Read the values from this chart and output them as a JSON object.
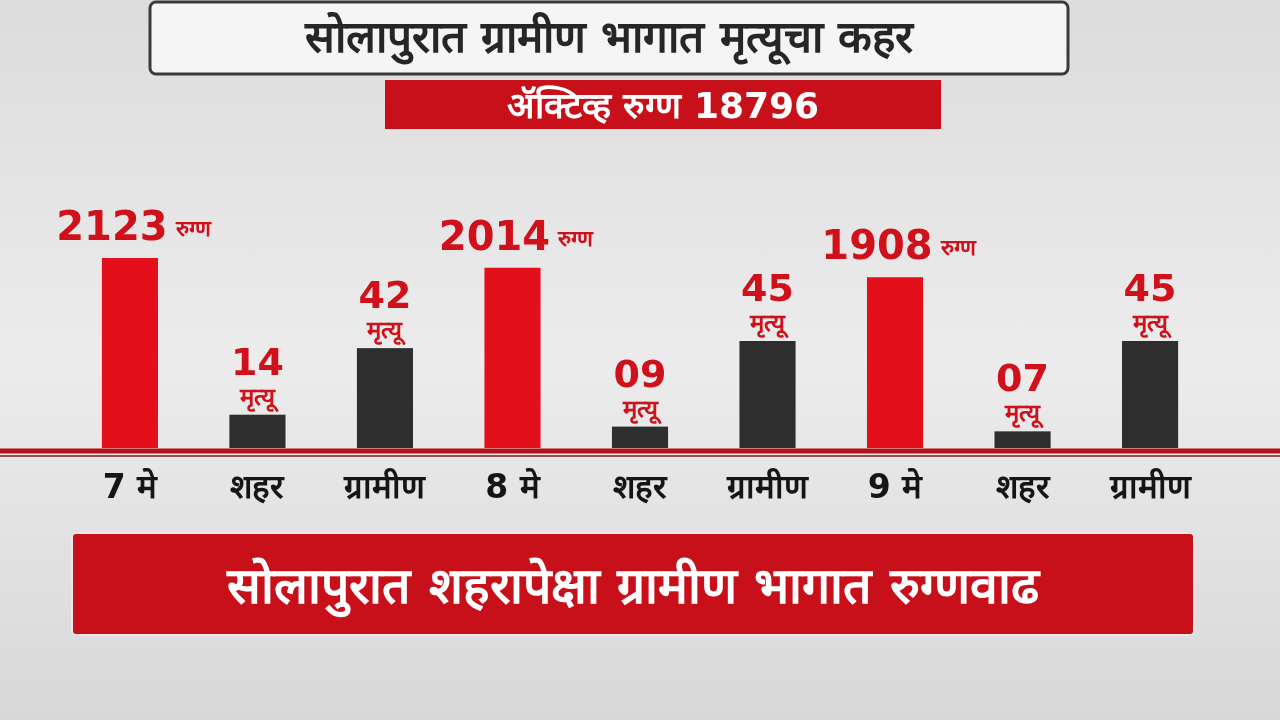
{
  "chart_data": {
    "type": "bar",
    "title": "सोलापुरात ग्रामीण भागात मृत्यूचा कहर",
    "subtitle": "ॲक्टिव्ह रुग्ण 18796",
    "categories": [
      "7 मे",
      "शहर",
      "ग्रामीण",
      "8 मे",
      "शहर",
      "ग्रामीण",
      "9 मे",
      "शहर",
      "ग्रामीण"
    ],
    "series": [
      {
        "name": "रुग्ण",
        "color": "#e3101b",
        "values": [
          2123,
          null,
          null,
          2014,
          null,
          null,
          1908,
          null,
          null
        ],
        "value_labels": [
          "2123",
          null,
          null,
          "2014",
          null,
          null,
          "1908",
          null,
          null
        ]
      },
      {
        "name": "मृत्यू",
        "color": "#2e2e2e",
        "axis": "y2",
        "values": [
          null,
          14,
          42,
          null,
          9,
          45,
          null,
          7,
          45
        ],
        "value_labels": [
          null,
          "14",
          "42",
          null,
          "09",
          "45",
          null,
          "07",
          "45"
        ]
      }
    ],
    "tick_labels": "x",
    "annotations": [
      "सोलापुरात शहरापेक्षा ग्रामीण भागात रुग्णवाढ"
    ]
  }
}
